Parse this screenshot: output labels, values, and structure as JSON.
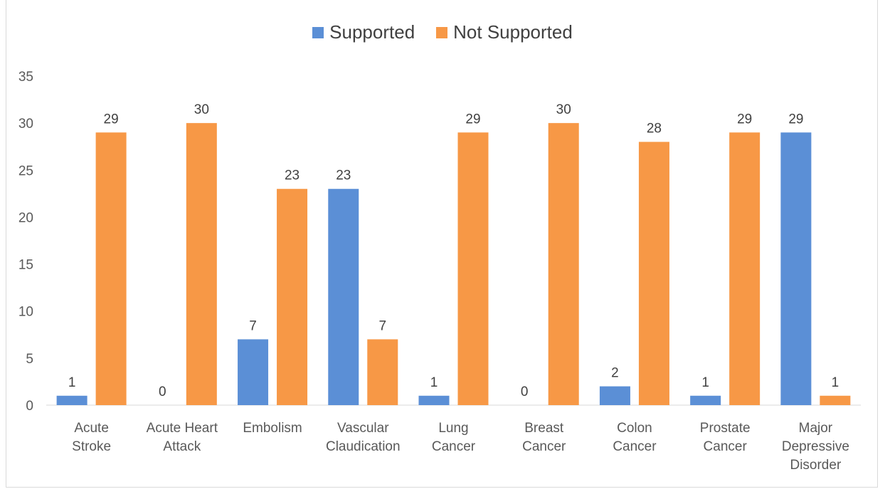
{
  "chart_data": {
    "type": "bar",
    "title": "",
    "categories": [
      [
        "Acute",
        "Stroke"
      ],
      [
        "Acute Heart",
        "Attack"
      ],
      [
        "Embolism"
      ],
      [
        "Vascular",
        "Claudication"
      ],
      [
        "Lung",
        "Cancer"
      ],
      [
        "Breast",
        "Cancer"
      ],
      [
        "Colon",
        "Cancer"
      ],
      [
        "Prostate",
        "Cancer"
      ],
      [
        "Major",
        "Depressive",
        "Disorder"
      ]
    ],
    "series": [
      {
        "name": "Supported",
        "color": "#5b8fd6",
        "values": [
          1,
          0,
          7,
          23,
          1,
          0,
          2,
          1,
          29
        ]
      },
      {
        "name": "Not Supported",
        "color": "#f79846",
        "values": [
          29,
          30,
          23,
          7,
          29,
          30,
          28,
          29,
          1
        ]
      }
    ],
    "ylim": [
      0,
      35
    ],
    "yticks": [
      0,
      5,
      10,
      15,
      20,
      25,
      30,
      35
    ],
    "legend_position": "top",
    "grid": false,
    "data_labels": true
  }
}
